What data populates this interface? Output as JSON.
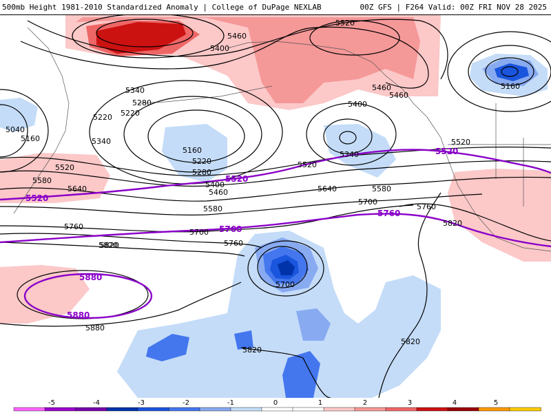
{
  "header": {
    "title": "500mb Height 1981-2010 Standardized Anomaly | College of DuPage NEXLAB",
    "run_info": "00Z GFS | F264 Valid: 00Z FRI NOV 28 2025"
  },
  "colors": {
    "anomaly_scale": [
      "#ff66ff",
      "#9900cc",
      "#7700aa",
      "#0033aa",
      "#1a55dd",
      "#4477ee",
      "#88aaf0",
      "#c4dcf8",
      "#ffffff",
      "#ffffff",
      "#fcc8c8",
      "#f59898",
      "#ee6666",
      "#cc1111",
      "#990000",
      "#ff9900",
      "#ffcc00"
    ],
    "purple_contour": "#8a00c8",
    "height_contour": "#000000"
  },
  "colorbar": {
    "ticks": [
      "-5",
      "-4",
      "-3",
      "-2",
      "-1",
      "0",
      "1",
      "2",
      "3",
      "4",
      "5"
    ]
  },
  "contour_labels": [
    {
      "name": "label-5520-alaska",
      "text": "5520"
    },
    {
      "name": "label-5460-north",
      "text": "5460"
    },
    {
      "name": "label-5400-north",
      "text": "5400"
    },
    {
      "name": "label-5340-west",
      "text": "5340"
    },
    {
      "name": "label-5280-west",
      "text": "5280"
    },
    {
      "name": "label-5220-west",
      "text": "5220"
    },
    {
      "name": "label-5220-west-b",
      "text": "5220"
    },
    {
      "name": "label-5040-edge",
      "text": "5040"
    },
    {
      "name": "label-5160-edge",
      "text": "5160"
    },
    {
      "name": "label-5340-edge",
      "text": "5340"
    },
    {
      "name": "label-5520-west",
      "text": "5520"
    },
    {
      "name": "label-5580-west",
      "text": "5580"
    },
    {
      "name": "label-5640-west",
      "text": "5640"
    },
    {
      "name": "label-5160-low",
      "text": "5160"
    },
    {
      "name": "label-5220-low",
      "text": "5220"
    },
    {
      "name": "label-5280-low",
      "text": "5280"
    },
    {
      "name": "label-5400-mid",
      "text": "5400"
    },
    {
      "name": "label-5460-mid",
      "text": "5460"
    },
    {
      "name": "label-5520-mid",
      "text": "5520"
    },
    {
      "name": "label-5580-mid",
      "text": "5580"
    },
    {
      "name": "label-5640-mid",
      "text": "5640"
    },
    {
      "name": "label-5700-mid",
      "text": "5700"
    },
    {
      "name": "label-5760-mid",
      "text": "5760"
    },
    {
      "name": "label-5820-mid",
      "text": "5820"
    },
    {
      "name": "label-5400-gulf",
      "text": "5400"
    },
    {
      "name": "label-5340-gulf",
      "text": "5340"
    },
    {
      "name": "label-5580-gulf",
      "text": "5580"
    },
    {
      "name": "label-5460-bc",
      "text": "5460"
    },
    {
      "name": "label-5460-bc-b",
      "text": "5460"
    },
    {
      "name": "label-5160-east",
      "text": "5160"
    },
    {
      "name": "label-5520-east",
      "text": "5520"
    },
    {
      "name": "label-5700-east",
      "text": "5700"
    },
    {
      "name": "label-5760-east",
      "text": "5760"
    },
    {
      "name": "label-5820-east",
      "text": "5820"
    },
    {
      "name": "label-5760-west",
      "text": "5760"
    },
    {
      "name": "label-5820-west",
      "text": "5820"
    },
    {
      "name": "label-5700-low",
      "text": "5700"
    },
    {
      "name": "label-5880-west",
      "text": "5880"
    },
    {
      "name": "label-5820-south",
      "text": "5820"
    },
    {
      "name": "label-5820-south-b",
      "text": "5820"
    }
  ],
  "reference_labels": [
    {
      "name": "ref-label-5520-west",
      "text": "5520"
    },
    {
      "name": "ref-label-5520-mid",
      "text": "5520"
    },
    {
      "name": "ref-label-5520-east",
      "text": "5520"
    },
    {
      "name": "ref-label-5760-mid",
      "text": "5760"
    },
    {
      "name": "ref-label-5760-east",
      "text": "5760"
    },
    {
      "name": "ref-label-5880-top",
      "text": "5880"
    },
    {
      "name": "ref-label-5880-bottom",
      "text": "5880"
    }
  ]
}
